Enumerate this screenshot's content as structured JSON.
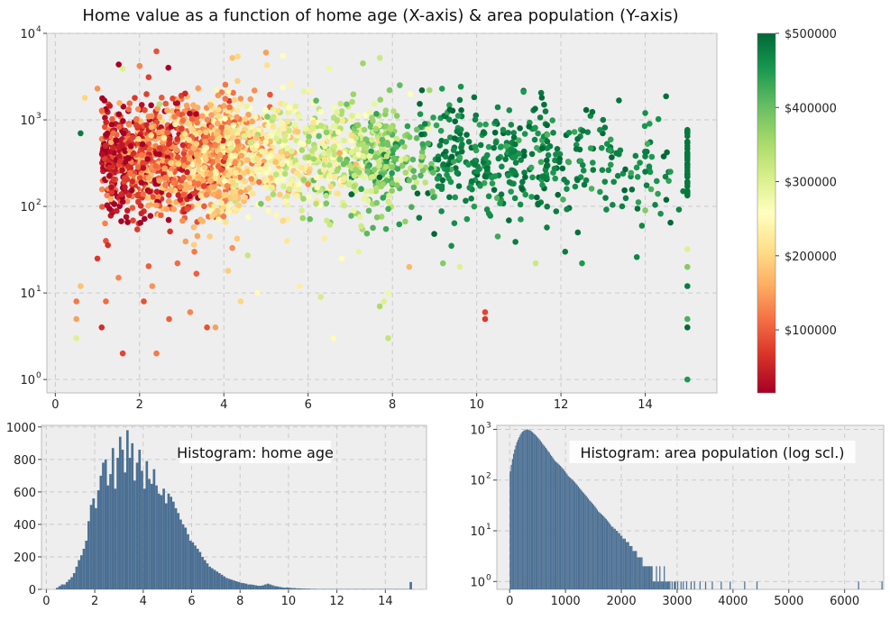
{
  "figure": {
    "title": "Home value as a function of home age (X-axis) & area population (Y-axis)"
  },
  "colors": {
    "panel_bg": "#eeeeee",
    "frame": "#bcbcbc",
    "grid": "#cbcbcb",
    "bar": "#4c7093",
    "cmap": [
      "#a50026",
      "#d73027",
      "#f46d43",
      "#fdae61",
      "#fee08b",
      "#ffffbf",
      "#d9ef8b",
      "#a6d96a",
      "#66bd63",
      "#1a9850",
      "#006837"
    ]
  },
  "chart_data": [
    {
      "type": "scatter",
      "title": "Home value as a function of home age (X-axis) & area population (Y-axis)",
      "xlabel": "",
      "ylabel": "",
      "xlim": [
        -0.2,
        15.7
      ],
      "ylim": [
        0.7,
        10000
      ],
      "yscale": "log",
      "grid": true,
      "xticks": [
        0,
        2,
        4,
        6,
        8,
        10,
        12,
        14
      ],
      "xtick_labels": [
        "0",
        "2",
        "4",
        "6",
        "8",
        "10",
        "12",
        "14"
      ],
      "yticks": [
        1,
        10,
        100,
        1000,
        10000
      ],
      "ytick_labels": [
        "10",
        "10",
        "10",
        "10",
        "10"
      ],
      "ytick_exponents": [
        "0",
        "1",
        "2",
        "3",
        "4"
      ],
      "color_encoding": "home value",
      "colorbar": {
        "range": [
          15000,
          500000
        ],
        "ticks": [
          100000,
          200000,
          300000,
          400000,
          500000
        ],
        "tick_labels": [
          "$100000",
          "$200000",
          "$300000",
          "$400000",
          "$500000"
        ],
        "placement": "right"
      },
      "points": [
        [
          1.6,
          2,
          80000
        ],
        [
          2.4,
          2,
          120000
        ],
        [
          1.1,
          4,
          60000
        ],
        [
          3.6,
          4,
          90000
        ],
        [
          3.8,
          4,
          150000
        ],
        [
          6.6,
          3,
          250000
        ],
        [
          7.9,
          3,
          330000
        ],
        [
          15,
          1,
          450000
        ],
        [
          15,
          4,
          500000
        ],
        [
          15,
          5,
          420000
        ],
        [
          0.5,
          3,
          300000
        ],
        [
          0.5,
          5,
          150000
        ],
        [
          0.5,
          8,
          120000
        ],
        [
          0.6,
          12,
          180000
        ],
        [
          1.2,
          8,
          110000
        ],
        [
          1.5,
          15,
          130000
        ],
        [
          2.1,
          8,
          90000
        ],
        [
          2.3,
          12,
          140000
        ],
        [
          2.7,
          5,
          100000
        ],
        [
          3.2,
          6,
          130000
        ],
        [
          4.4,
          8,
          200000
        ],
        [
          4.8,
          10,
          250000
        ],
        [
          5.8,
          12,
          230000
        ],
        [
          6.3,
          9,
          310000
        ],
        [
          7.8,
          8,
          300000
        ],
        [
          7.7,
          7,
          350000
        ],
        [
          7.9,
          10,
          280000
        ],
        [
          9.2,
          22,
          380000
        ],
        [
          9.6,
          20,
          300000
        ],
        [
          10.2,
          5,
          70000
        ],
        [
          10.2,
          6,
          80000
        ],
        [
          11.4,
          22,
          320000
        ],
        [
          12.5,
          22,
          450000
        ],
        [
          15,
          20,
          380000
        ],
        [
          15,
          32,
          300000
        ],
        [
          15,
          12,
          480000
        ],
        [
          8.4,
          20,
          170000
        ],
        [
          6.8,
          25,
          260000
        ],
        [
          3.3,
          30,
          120000
        ],
        [
          1.2,
          40,
          90000
        ],
        [
          1.0,
          25,
          70000
        ],
        [
          4.1,
          18,
          190000
        ],
        [
          2.9,
          22,
          110000
        ],
        [
          5.5,
          40,
          220000
        ],
        [
          7.2,
          30,
          290000
        ],
        [
          9.4,
          35,
          460000
        ],
        [
          10.5,
          45,
          430000
        ],
        [
          12.1,
          30,
          480000
        ],
        [
          13.8,
          26,
          470000
        ],
        [
          12.4,
          50,
          490000
        ],
        [
          14.6,
          65,
          500000
        ],
        [
          14.8,
          92,
          470000
        ],
        [
          14.3,
          140,
          440000
        ],
        [
          14.9,
          150,
          480000
        ],
        [
          14.0,
          1200,
          460000
        ],
        [
          13.0,
          1000,
          480000
        ],
        [
          12.6,
          1300,
          500000
        ],
        [
          11.6,
          1500,
          490000
        ],
        [
          10.5,
          1400,
          470000
        ],
        [
          9.6,
          1700,
          480000
        ],
        [
          8.7,
          2200,
          500000
        ],
        [
          7.3,
          4500,
          360000
        ],
        [
          7.7,
          5200,
          320000
        ],
        [
          6.5,
          3900,
          280000
        ],
        [
          5.4,
          5500,
          260000
        ],
        [
          5.0,
          6000,
          150000
        ],
        [
          4.2,
          5200,
          180000
        ],
        [
          2.4,
          6200,
          90000
        ],
        [
          2.0,
          4200,
          130000
        ],
        [
          1.6,
          3900,
          300000
        ],
        [
          1.0,
          2300,
          140000
        ],
        [
          0.7,
          1800,
          200000
        ],
        [
          0.6,
          700,
          480000
        ],
        [
          15,
          150,
          500000
        ],
        [
          15,
          220,
          490000
        ],
        [
          15,
          300,
          500000
        ],
        [
          15,
          420,
          480000
        ],
        [
          15,
          560,
          500000
        ],
        [
          15,
          700,
          470000
        ],
        [
          14.0,
          90,
          380000
        ]
      ]
    },
    {
      "type": "bar",
      "title": "Histogram: home age",
      "xlabel": "",
      "ylabel": "",
      "xlim": [
        -0.2,
        15.7
      ],
      "ylim": [
        0,
        1010
      ],
      "grid": true,
      "xticks": [
        0,
        2,
        4,
        6,
        8,
        10,
        12,
        14
      ],
      "xtick_labels": [
        "0",
        "2",
        "4",
        "6",
        "8",
        "10",
        "12",
        "14"
      ],
      "yticks": [
        0,
        200,
        400,
        600,
        800,
        1000
      ],
      "ytick_labels": [
        "0",
        "200",
        "400",
        "600",
        "800",
        "1000"
      ],
      "bin_width": 0.1,
      "bin_start": 0.4,
      "values": [
        10,
        20,
        30,
        30,
        45,
        60,
        75,
        100,
        140,
        180,
        210,
        250,
        300,
        420,
        520,
        560,
        500,
        610,
        700,
        780,
        800,
        640,
        710,
        870,
        620,
        810,
        940,
        860,
        720,
        980,
        810,
        900,
        670,
        780,
        860,
        730,
        620,
        790,
        680,
        650,
        740,
        640,
        590,
        580,
        620,
        530,
        590,
        570,
        540,
        500,
        470,
        430,
        400,
        380,
        340,
        300,
        290,
        270,
        250,
        230,
        200,
        180,
        160,
        140,
        130,
        120,
        110,
        100,
        90,
        80,
        70,
        65,
        60,
        55,
        50,
        45,
        40,
        38,
        35,
        30,
        30,
        28,
        25,
        22,
        22,
        25,
        30,
        35,
        30,
        25,
        20,
        18,
        15,
        12,
        10,
        12,
        10,
        8,
        8,
        6,
        6,
        5,
        5,
        4,
        4,
        3,
        3,
        2,
        2,
        2,
        2,
        2,
        2,
        2,
        2,
        2,
        2,
        2,
        2,
        2,
        2,
        2,
        2,
        2,
        2,
        2,
        2,
        2,
        2,
        2,
        2,
        2,
        2,
        2,
        2,
        2,
        2,
        2,
        2,
        2,
        2,
        2,
        2,
        2,
        2,
        2,
        45
      ]
    },
    {
      "type": "bar",
      "title": "Histogram: area population (log scl.)",
      "xlabel": "",
      "ylabel": "",
      "xlim": [
        -230,
        6700
      ],
      "ylim": [
        0.7,
        1200
      ],
      "yscale": "log",
      "grid": true,
      "xticks": [
        0,
        1000,
        2000,
        3000,
        4000,
        5000,
        6000
      ],
      "xtick_labels": [
        "0",
        "1000",
        "2000",
        "3000",
        "4000",
        "5000",
        "6000"
      ],
      "yticks": [
        1,
        10,
        100,
        1000
      ],
      "ytick_labels": [
        "10",
        "10",
        "10",
        "10"
      ],
      "ytick_exponents": [
        "0",
        "1",
        "2",
        "3"
      ],
      "bin_width": 20,
      "bin_start": 0,
      "bins_per_decay": 1,
      "values": [
        150,
        200,
        260,
        330,
        400,
        480,
        560,
        630,
        700,
        780,
        850,
        900,
        940,
        960,
        980,
        1000,
        990,
        970,
        950,
        920,
        880,
        840,
        800,
        760,
        720,
        680,
        640,
        600,
        560,
        520,
        490,
        460,
        430,
        400,
        370,
        350,
        320,
        300,
        280,
        260,
        240,
        230,
        220,
        210,
        200,
        190,
        180,
        170,
        160,
        150,
        140,
        130,
        120,
        115,
        110,
        105,
        100,
        95,
        90,
        85,
        80,
        75,
        70,
        66,
        62,
        58,
        55,
        52,
        49,
        46,
        43,
        40,
        38,
        36,
        34,
        32,
        30,
        28,
        26,
        24,
        23,
        22,
        21,
        20,
        19,
        18,
        17,
        16,
        15,
        14,
        13,
        12,
        12,
        11,
        11,
        10,
        10,
        9,
        9,
        8,
        8,
        7,
        7,
        7,
        6,
        6,
        6,
        5,
        5,
        5,
        4,
        4,
        4,
        4,
        3,
        3,
        3,
        3,
        3,
        2,
        2,
        2,
        2,
        2,
        2,
        2,
        2,
        2,
        1,
        1,
        1,
        2,
        1,
        1,
        2,
        1,
        1,
        1,
        2,
        1,
        1,
        1,
        1,
        1,
        0,
        1,
        0,
        1,
        1,
        0,
        1,
        0,
        0,
        1,
        0,
        1,
        0,
        0,
        1,
        0,
        0,
        0,
        1,
        0,
        0,
        1,
        0,
        0,
        0,
        0,
        1,
        0,
        0,
        0,
        0,
        1,
        0,
        0,
        0,
        0,
        0,
        1,
        0,
        0,
        0,
        0,
        0,
        0,
        0,
        1,
        0,
        0,
        0,
        0,
        0,
        0,
        0,
        1,
        0,
        0,
        0,
        0,
        0,
        0,
        0,
        0,
        0,
        0,
        0,
        0,
        1,
        0,
        0,
        0,
        0,
        0,
        0,
        0,
        0,
        0,
        0,
        1,
        0,
        0,
        0,
        0,
        0,
        0,
        0,
        0,
        0,
        0,
        0,
        0,
        0,
        0,
        0,
        0,
        0,
        0,
        0,
        0,
        0,
        0,
        0,
        0,
        0,
        0,
        0,
        0,
        0,
        0,
        0,
        0,
        0,
        0,
        0,
        0,
        0,
        0,
        0,
        0,
        0,
        0,
        0,
        0,
        0,
        0,
        0,
        0,
        0,
        0,
        0,
        0,
        0,
        0,
        0,
        0,
        0,
        0,
        0,
        0,
        0,
        0,
        0,
        0,
        0,
        0,
        0,
        0,
        0,
        0,
        0,
        0,
        0,
        0,
        0,
        0,
        0,
        0,
        0,
        0,
        0,
        0,
        0,
        0,
        0,
        0,
        0,
        0,
        0,
        0,
        1,
        0,
        0,
        0,
        0,
        0,
        0,
        0,
        0,
        0,
        0,
        0,
        0,
        0,
        0,
        0,
        0,
        0,
        0,
        0,
        0,
        1
      ]
    }
  ]
}
